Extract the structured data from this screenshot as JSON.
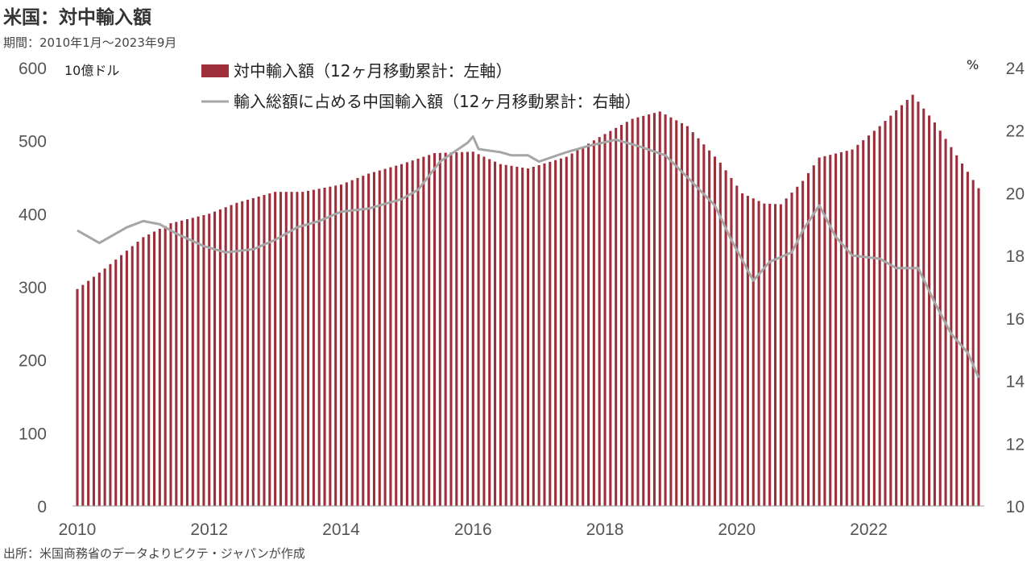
{
  "title": "米国：対中輸入額",
  "subtitle": "期間：2010年1月～2023年9月",
  "source": "出所：米国商務省のデータよりピクテ・ジャパンが作成",
  "colors": {
    "bar": "#9e2f3a",
    "line": "#a6a6a6"
  },
  "chart_data": {
    "type": "bar+line",
    "left_unit": "10億ドル",
    "right_unit": "%",
    "left_axis": {
      "min": 0,
      "max": 600,
      "ticks": [
        "0",
        "100",
        "200",
        "300",
        "400",
        "500",
        "600"
      ]
    },
    "right_axis": {
      "min": 10,
      "max": 24,
      "ticks": [
        "10",
        "12",
        "14",
        "16",
        "18",
        "20",
        "22",
        "24"
      ]
    },
    "x_ticks": [
      "2010",
      "2012",
      "2014",
      "2016",
      "2018",
      "2020",
      "2022"
    ],
    "legend": [
      {
        "label": "対中輸入額（12ヶ月移動累計：左軸）",
        "kind": "bar"
      },
      {
        "label": "輸入総額に占める中国輸入額（12ヶ月移動累計：右軸）",
        "kind": "line"
      }
    ],
    "period": {
      "start": "2010-01",
      "end": "2023-09"
    },
    "bar_anchors": [
      [
        "2010-01",
        297
      ],
      [
        "2010-06",
        325
      ],
      [
        "2011-01",
        368
      ],
      [
        "2011-06",
        387
      ],
      [
        "2012-01",
        400
      ],
      [
        "2012-06",
        415
      ],
      [
        "2013-01",
        430
      ],
      [
        "2013-06",
        430
      ],
      [
        "2014-01",
        440
      ],
      [
        "2014-06",
        455
      ],
      [
        "2014-12",
        468
      ],
      [
        "2015-06",
        483
      ],
      [
        "2016-01",
        485
      ],
      [
        "2016-06",
        468
      ],
      [
        "2016-11",
        462
      ],
      [
        "2017-06",
        478
      ],
      [
        "2017-12",
        505
      ],
      [
        "2018-06",
        530
      ],
      [
        "2018-11",
        540
      ],
      [
        "2019-04",
        520
      ],
      [
        "2019-10",
        470
      ],
      [
        "2020-02",
        428
      ],
      [
        "2020-06",
        414
      ],
      [
        "2020-09",
        413
      ],
      [
        "2021-01",
        445
      ],
      [
        "2021-04",
        477
      ],
      [
        "2021-10",
        488
      ],
      [
        "2022-03",
        520
      ],
      [
        "2022-09",
        563
      ],
      [
        "2023-01",
        525
      ],
      [
        "2023-09",
        435
      ]
    ],
    "line_anchors": [
      [
        "2010-01",
        18.8
      ],
      [
        "2010-02",
        18.7
      ],
      [
        "2010-05",
        18.4
      ],
      [
        "2010-07",
        18.6
      ],
      [
        "2010-10",
        18.9
      ],
      [
        "2011-01",
        19.1
      ],
      [
        "2011-04",
        19.0
      ],
      [
        "2011-07",
        18.7
      ],
      [
        "2011-12",
        18.3
      ],
      [
        "2012-04",
        18.1
      ],
      [
        "2012-09",
        18.2
      ],
      [
        "2013-01",
        18.5
      ],
      [
        "2013-05",
        18.9
      ],
      [
        "2013-09",
        19.1
      ],
      [
        "2014-01",
        19.4
      ],
      [
        "2014-06",
        19.5
      ],
      [
        "2014-12",
        19.8
      ],
      [
        "2015-03",
        20.1
      ],
      [
        "2015-07",
        21.0
      ],
      [
        "2015-12",
        21.6
      ],
      [
        "2016-01",
        21.8
      ],
      [
        "2016-02",
        21.4
      ],
      [
        "2016-06",
        21.3
      ],
      [
        "2016-08",
        21.2
      ],
      [
        "2016-11",
        21.2
      ],
      [
        "2017-01",
        21.0
      ],
      [
        "2017-06",
        21.3
      ],
      [
        "2017-10",
        21.5
      ],
      [
        "2018-03",
        21.7
      ],
      [
        "2018-07",
        21.5
      ],
      [
        "2018-12",
        21.2
      ],
      [
        "2019-04",
        20.5
      ],
      [
        "2019-09",
        19.6
      ],
      [
        "2019-12",
        18.5
      ],
      [
        "2020-04",
        17.2
      ],
      [
        "2020-07",
        17.8
      ],
      [
        "2020-11",
        18.1
      ],
      [
        "2021-01",
        18.8
      ],
      [
        "2021-04",
        19.6
      ],
      [
        "2021-07",
        18.6
      ],
      [
        "2021-10",
        18.0
      ],
      [
        "2022-03",
        17.9
      ],
      [
        "2022-06",
        17.6
      ],
      [
        "2022-10",
        17.6
      ],
      [
        "2023-01",
        16.5
      ],
      [
        "2023-04",
        15.5
      ],
      [
        "2023-07",
        14.9
      ],
      [
        "2023-09",
        14.1
      ]
    ]
  }
}
